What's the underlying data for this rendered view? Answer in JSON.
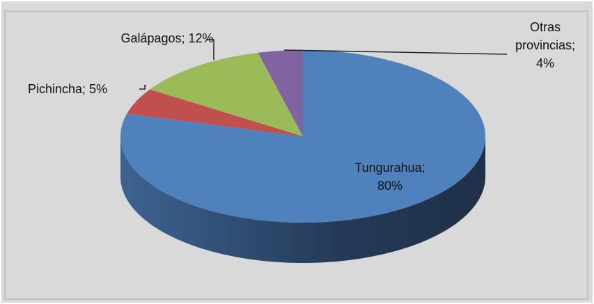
{
  "chart_data": {
    "type": "pie",
    "values": [
      80,
      5,
      12,
      4
    ],
    "value_labels": [
      "Tungurahua; 80%",
      "Pichincha; 5%",
      "Galápagos; 12%",
      "Otras provincias; 4%"
    ],
    "colors": [
      "#4f81bd",
      "#c0504d",
      "#9bbb59",
      "#8064a2"
    ]
  }
}
